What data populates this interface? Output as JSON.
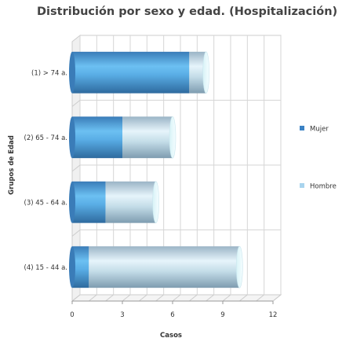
{
  "chart_data": {
    "type": "bar",
    "orientation": "horizontal",
    "stacked": true,
    "style": "3d-cylinder",
    "title": "Distribución por sexo y edad. (Hospitalización)",
    "xlabel": "Casos",
    "ylabel": "Grupos de Edad",
    "xlim": [
      0,
      12
    ],
    "xticks": [
      "0",
      "3",
      "6",
      "9",
      "12"
    ],
    "grid": true,
    "legend_position": "right",
    "categories": [
      "(1) > 74 a.",
      "(2) 65 - 74 a.",
      "(3) 45 - 64 a.",
      "(4) 15 - 44 a."
    ],
    "series": [
      {
        "name": "Mujer",
        "color": "#3b82c4",
        "values": [
          7,
          3,
          2,
          1
        ]
      },
      {
        "name": "Hombre",
        "color": "#a9d4ee",
        "values": [
          1,
          3,
          3,
          9
        ]
      }
    ]
  }
}
